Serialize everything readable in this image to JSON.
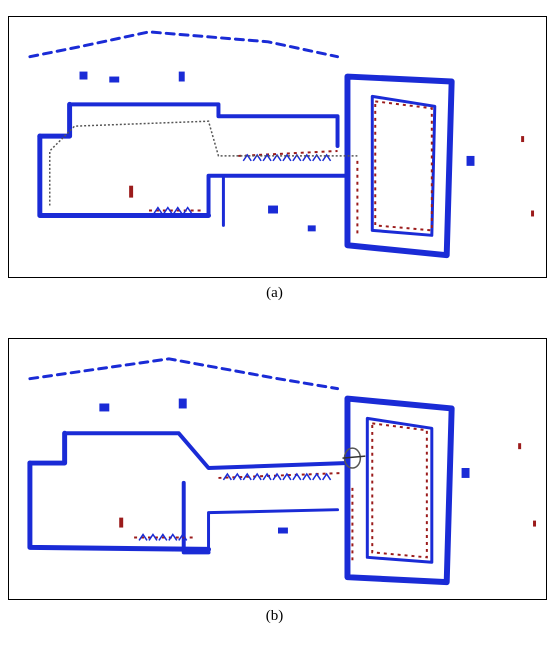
{
  "figure": {
    "panels": [
      {
        "label": "(a)"
      },
      {
        "label": "(b)"
      }
    ],
    "colors": {
      "map_wall": "#1a2bd6",
      "scan_red": "#9b1b1b",
      "trajectory": "#555555",
      "frame": "#000000"
    }
  }
}
